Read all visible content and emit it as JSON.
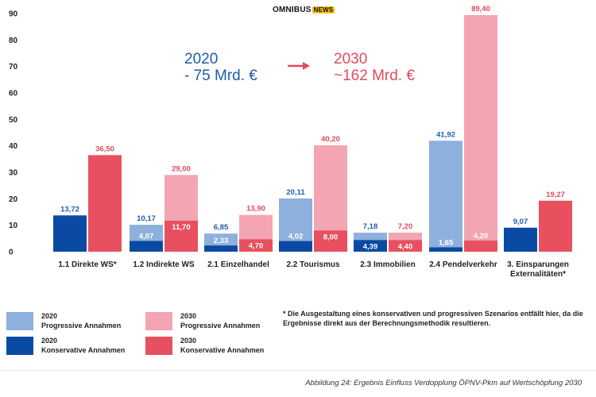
{
  "logo": {
    "main": "OMNIBUS",
    "badge": "NEWS"
  },
  "headline": {
    "y2020_year": "2020",
    "y2020_value": "- 75 Mrd. €",
    "y2030_year": "2030",
    "y2030_value": "~162 Mrd. €"
  },
  "colors": {
    "prog2020": "#8eb0dc",
    "kons2020": "#0b4aa3",
    "prog2030": "#f4a5b2",
    "kons2030": "#e8505f",
    "label2020": "#1f5cab",
    "label2030": "#e04a5c"
  },
  "chart_data": {
    "type": "bar",
    "ylim": [
      0,
      90
    ],
    "yticks": [
      "0",
      "10",
      "20",
      "30",
      "40",
      "50",
      "60",
      "70",
      "80",
      "90"
    ],
    "categories": [
      "1.1 Direkte WS*",
      "1.2 Indirekte WS",
      "2.1 Einzelhandel",
      "2.2 Tourismus",
      "2.3 Immobilien",
      "2.4 Pendelverkehr",
      "3. Einsparungen Externalitäten*"
    ],
    "category_lines": [
      [
        "1.1 Direkte WS*"
      ],
      [
        "1.2 Indirekte WS"
      ],
      [
        "2.1 Einzelhandel"
      ],
      [
        "2.2 Tourismus"
      ],
      [
        "2.3 Immobilien"
      ],
      [
        "2.4 Pendelverkehr"
      ],
      [
        "3. Einsparungen",
        "Externalitäten*"
      ]
    ],
    "series": [
      {
        "name": "2020 Progressive Annahmen",
        "values": [
          null,
          10.17,
          6.85,
          20.11,
          7.18,
          41.92,
          null
        ],
        "labels": [
          null,
          "10,17",
          "6,85",
          "20,11",
          "7,18",
          "41,92",
          null
        ]
      },
      {
        "name": "2020 Konservative Annahmen",
        "values": [
          13.72,
          4.07,
          2.33,
          4.02,
          4.39,
          1.65,
          9.07
        ],
        "labels": [
          "13,72",
          "4,07",
          "2,33",
          "4,02",
          "4,39",
          "1,65",
          "9,07"
        ]
      },
      {
        "name": "2030 Progressive Annahmen",
        "values": [
          null,
          29.0,
          13.9,
          40.2,
          7.2,
          89.4,
          null
        ],
        "labels": [
          null,
          "29,00",
          "13,90",
          "40,20",
          "7,20",
          "89,40",
          null
        ]
      },
      {
        "name": "2030 Konservative Annahmen",
        "values": [
          36.5,
          11.7,
          4.7,
          8.0,
          4.4,
          4.2,
          19.27
        ],
        "labels": [
          "36,50",
          "11,70",
          "4,70",
          "8,00",
          "4,40",
          "4,20",
          "19,27"
        ]
      }
    ]
  },
  "legend": [
    {
      "year": "2020",
      "text": "Progressive Annahmen"
    },
    {
      "year": "2020",
      "text": "Konservative Annahmen"
    },
    {
      "year": "2030",
      "text": "Progressive Annahmen"
    },
    {
      "year": "2030",
      "text": "Konservative Annahmen"
    }
  ],
  "note": "* Die Ausgestaltung eines konservativen und progressiven Szenarios entfällt hier, da die Ergebnisse direkt aus der Berechnungsmethodik resultieren.",
  "caption": "Abbildung 24: Ergebnis Einfluss Verdopplung ÖPNV-Pkm auf Wertschöpfung 2030"
}
